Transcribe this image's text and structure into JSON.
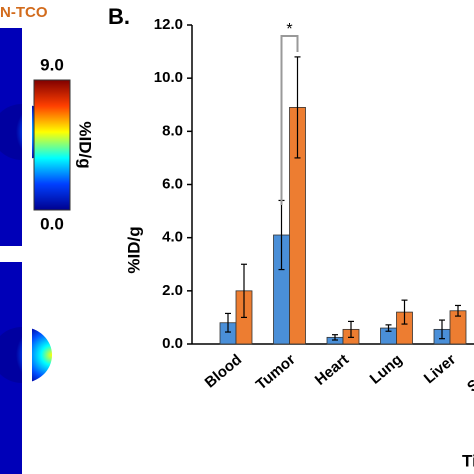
{
  "panel_a": {
    "probe_label": "N-TCO",
    "colorbar": {
      "max_label": "9.0",
      "min_label": "0.0",
      "unit_label": "%ID/g"
    }
  },
  "chart_data": {
    "type": "bar",
    "panel_label": "B.",
    "ylabel": "%ID/g",
    "xlabel": "Tissue",
    "categories": [
      "Blood",
      "Tumor",
      "Heart",
      "Lung",
      "Liver",
      "Spleen"
    ],
    "series": [
      {
        "color": "#4a8fd8",
        "values": [
          0.8,
          4.1,
          0.25,
          0.6,
          0.55,
          null
        ],
        "errors": [
          0.35,
          1.3,
          0.1,
          0.12,
          0.35,
          null
        ]
      },
      {
        "color": "#ed7d31",
        "values": [
          2.0,
          8.9,
          0.55,
          1.2,
          1.25,
          null
        ],
        "errors": [
          1.0,
          1.9,
          0.3,
          0.45,
          0.2,
          null
        ]
      }
    ],
    "ylim": [
      0,
      12
    ],
    "yticks": [
      {
        "value": 0,
        "label": "0.0"
      },
      {
        "value": 2,
        "label": "2.0"
      },
      {
        "value": 4,
        "label": "4.0"
      },
      {
        "value": 6,
        "label": "6.0"
      },
      {
        "value": 8,
        "label": "8.0"
      },
      {
        "value": 10,
        "label": "10.0"
      },
      {
        "value": 12,
        "label": "12.0"
      }
    ],
    "annotation": "*"
  }
}
